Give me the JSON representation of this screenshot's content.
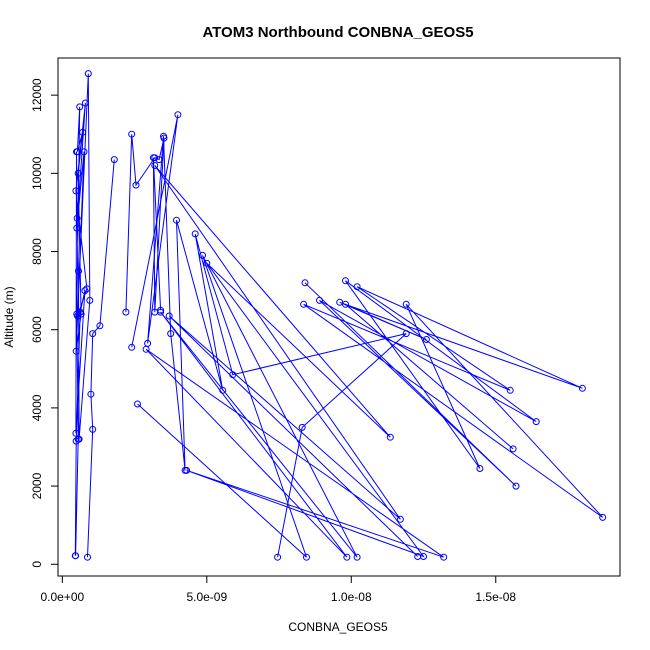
{
  "chart_data": {
    "type": "line",
    "title": "ATOM3 Northbound CONBNA_GEOS5",
    "xlabel": "CONBNA_GEOS5",
    "ylabel": "Altitude (m)",
    "xlim": [
      -1.5e-10,
      1.93e-08
    ],
    "ylim": [
      -300,
      12950
    ],
    "x_ticks": [
      {
        "value": 0,
        "label": "0.0e+00"
      },
      {
        "value": 5e-09,
        "label": "5.0e-09"
      },
      {
        "value": 1e-08,
        "label": "1.0e-08"
      },
      {
        "value": 1.5e-08,
        "label": "1.5e-08"
      }
    ],
    "y_ticks": [
      {
        "value": 0,
        "label": "0"
      },
      {
        "value": 2000,
        "label": "2000"
      },
      {
        "value": 4000,
        "label": "4000"
      },
      {
        "value": 6000,
        "label": "6000"
      },
      {
        "value": 8000,
        "label": "8000"
      },
      {
        "value": 10000,
        "label": "10000"
      },
      {
        "value": 12000,
        "label": "12000"
      }
    ],
    "grid": false,
    "legend": "none",
    "marker": "open-circle",
    "color": "#0000ff",
    "series": [
      {
        "x": [
          4.6e-10,
          5.5e-10,
          5e-10,
          6e-10,
          5.2e-10,
          7e-10,
          5.5e-10,
          6.5e-10,
          4.8e-10,
          7.5e-10,
          5e-10,
          8e-10,
          4.7e-10,
          8.5e-10,
          5.3e-10,
          9e-10,
          9.5e-10,
          5.8e-10,
          5.6e-10,
          5.1e-10,
          4.9e-10,
          4.7e-10,
          7.8e-10,
          6.2e-10,
          4.8e-10,
          4.5e-10
        ],
        "y": [
          220,
          3200,
          6400,
          11700,
          10550,
          11050,
          10000,
          6400,
          5450,
          10550,
          8600,
          11800,
          9550,
          7050,
          6350,
          12550,
          6750,
          3200,
          7500,
          8850,
          10550,
          3350,
          7000,
          6450,
          3150,
          220
        ]
      },
      {
        "x": [
          8.7e-10,
          1.05e-09,
          9.9e-10,
          1.05e-09,
          1.3e-09,
          1.8e-09
        ],
        "y": [
          180,
          3450,
          4350,
          5900,
          6100,
          10350
        ]
      },
      {
        "x": [
          2.2e-09,
          2.4e-09,
          2.55e-09,
          3.2e-09,
          3.35e-09,
          3.52e-09,
          3.2e-09,
          3.15e-09,
          3.4e-09
        ],
        "y": [
          6450,
          11000,
          9700,
          10400,
          10350,
          10900,
          6450,
          10400,
          6500
        ]
      },
      {
        "x": [
          2.4e-09,
          4e-09,
          2.95e-09,
          3.5e-09,
          3.75e-09,
          4.25e-09,
          3.95e-09,
          5.55e-09,
          4.6e-09,
          5.9e-09,
          1.19e-08,
          8.3e-09,
          7.45e-09
        ],
        "y": [
          5550,
          11500,
          5650,
          10950,
          5900,
          2400,
          8800,
          4450,
          8450,
          4850,
          5900,
          3500,
          180
        ]
      },
      {
        "x": [
          2.6e-09,
          8.45e-09,
          4.85e-09,
          1.02e-08,
          3.4e-09,
          9.85e-09,
          2.9e-09,
          1.32e-08,
          4.3e-09,
          1.25e-08,
          5e-09,
          1.135e-08,
          3.2e-09,
          1.17e-08,
          3.7e-09,
          1.23e-08
        ],
        "y": [
          4100,
          180,
          7900,
          180,
          6450,
          180,
          5500,
          180,
          2400,
          200,
          7700,
          3250,
          10200,
          1150,
          6350,
          200
        ]
      },
      {
        "x": [
          8.4e-09,
          1.57e-08,
          8.9e-09,
          1.64e-08,
          9.8e-09,
          1.445e-08,
          1.19e-08,
          1.87e-08,
          8.35e-09,
          1.55e-08,
          1.02e-08,
          1.8e-08,
          9.6e-09,
          1.26e-08,
          9.8e-09,
          1.56e-08
        ],
        "y": [
          7200,
          2000,
          6750,
          3650,
          7250,
          2450,
          6650,
          1200,
          6650,
          4450,
          7100,
          4500,
          6700,
          5750,
          6650,
          2950
        ]
      }
    ]
  }
}
